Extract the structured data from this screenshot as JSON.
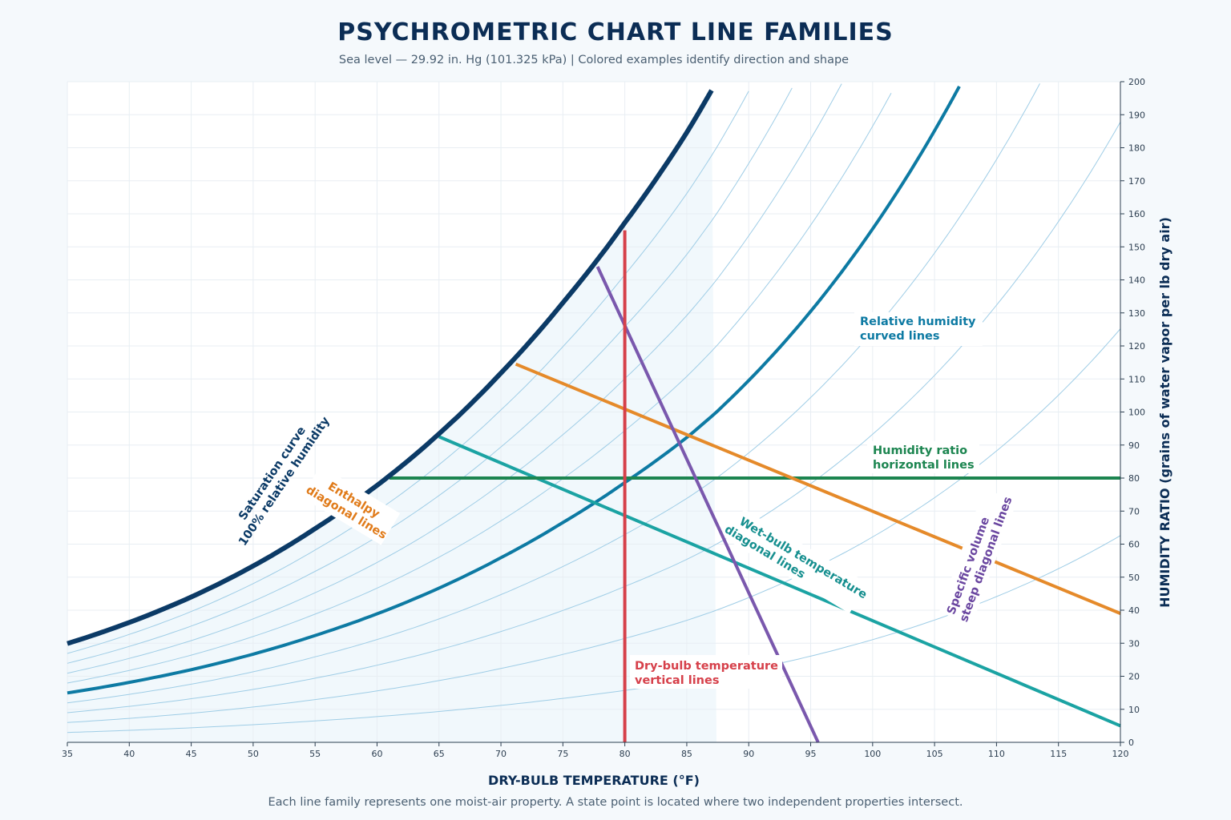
{
  "header": {
    "title": "PSYCHROMETRIC CHART LINE FAMILIES",
    "subtitle": "Sea level — 29.92 in. Hg (101.325 kPa)  |  Colored examples identify direction and shape"
  },
  "footer": {
    "note": "Each line family represents one moist-air property. A state point is located where two independent properties intersect."
  },
  "chart_data": {
    "type": "line",
    "xlabel": "DRY-BULB TEMPERATURE (°F)",
    "ylabel": "HUMIDITY RATIO (grains of water vapor per lb dry air)",
    "xlim": [
      35,
      120
    ],
    "ylim": [
      0,
      200
    ],
    "x_ticks": [
      35,
      40,
      45,
      50,
      55,
      60,
      65,
      70,
      75,
      80,
      85,
      90,
      95,
      100,
      105,
      110,
      115,
      120
    ],
    "y_ticks": [
      0,
      10,
      20,
      30,
      40,
      50,
      60,
      70,
      80,
      90,
      100,
      110,
      120,
      130,
      140,
      150,
      160,
      170,
      180,
      190,
      200
    ],
    "y_axis_side": "right",
    "grid": true,
    "colors": {
      "saturation": "#0b3a66",
      "relative_humidity": "#0d7aa3",
      "rh_family": "#9fcde6",
      "humidity_ratio": "#1c8550",
      "enthalpy": "#e58a2a",
      "wet_bulb": "#1ba3a3",
      "specific_volume": "#7a58ad",
      "dry_bulb": "#d6404a"
    },
    "rh_family_percent": [
      10,
      20,
      30,
      40,
      50,
      60,
      70,
      80,
      90
    ],
    "series": [
      {
        "name": "Saturation curve",
        "x": [
          35,
          40,
          45,
          50,
          55,
          60,
          65,
          70,
          75,
          80,
          85,
          87.4
        ],
        "y": [
          29.9,
          36.3,
          44.0,
          53.4,
          64.7,
          77.8,
          93.4,
          111.8,
          133.1,
          157.3,
          184.6,
          200
        ]
      },
      {
        "name": "Humidity ratio horizontal line",
        "x": [
          61,
          120
        ],
        "y": [
          80,
          80
        ]
      },
      {
        "name": "Enthalpy diagonal line",
        "x": [
          71.2,
          120
        ],
        "y": [
          114.5,
          39
        ]
      },
      {
        "name": "Wet-bulb diagonal line",
        "x": [
          65,
          120
        ],
        "y": [
          92.5,
          5
        ]
      },
      {
        "name": "Specific volume steep line",
        "x": [
          77.8,
          95.6
        ],
        "y": [
          144,
          0
        ]
      },
      {
        "name": "Dry-bulb vertical line",
        "x": [
          80,
          80
        ],
        "y": [
          0,
          155
        ]
      }
    ],
    "annotations": {
      "saturation": [
        "Saturation curve",
        "100% relative humidity"
      ],
      "enthalpy": [
        "Enthalpy",
        "diagonal lines"
      ],
      "relative_humidity": [
        "Relative humidity",
        "curved lines"
      ],
      "humidity_ratio": [
        "Humidity ratio",
        "horizontal lines"
      ],
      "wet_bulb": [
        "Wet-bulb temperature",
        "diagonal lines"
      ],
      "specific_volume": [
        "Specific volume",
        "steep diagonal lines"
      ],
      "dry_bulb": [
        "Dry-bulb temperature",
        "vertical lines"
      ]
    }
  }
}
